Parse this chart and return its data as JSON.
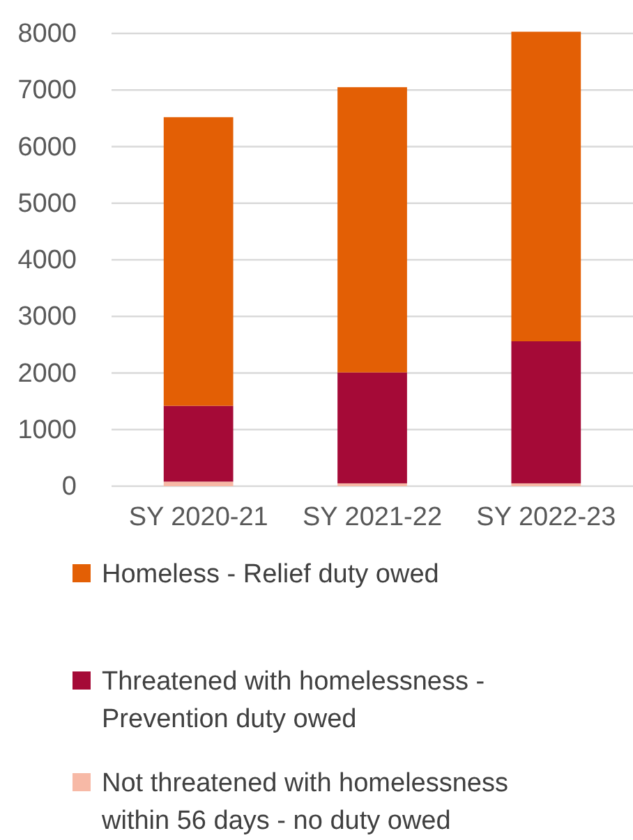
{
  "chart_data": {
    "type": "bar",
    "stacked": true,
    "categories": [
      "SY 2020-21",
      "SY 2021-22",
      "SY 2022-23"
    ],
    "series": [
      {
        "name": "Not threatened with homelessness within 56 days - no duty owed",
        "color": "#f7b9a6",
        "values": [
          80,
          50,
          50
        ]
      },
      {
        "name": "Threatened with homelessness - Prevention duty owed",
        "color": "#a50a37",
        "values": [
          1340,
          1960,
          2510
        ]
      },
      {
        "name": "Homeless - Relief duty owed",
        "color": "#e35f05",
        "values": [
          5100,
          5040,
          5470
        ]
      }
    ],
    "ylim": [
      0,
      8000
    ],
    "yticks": [
      0,
      1000,
      2000,
      3000,
      4000,
      5000,
      6000,
      7000,
      8000
    ],
    "grid": "y",
    "legend": "bottom"
  }
}
